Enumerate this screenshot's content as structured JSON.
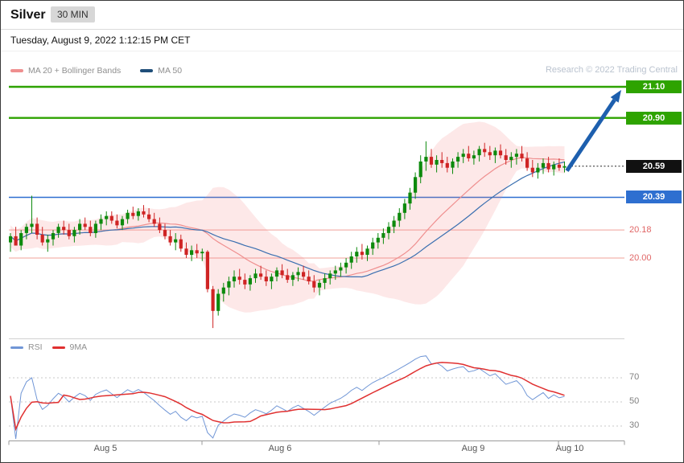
{
  "header": {
    "title": "Silver",
    "timeframe": "30 MIN",
    "datetime": "Tuesday, August 9, 2022 1:12:15 PM CET"
  },
  "legend": {
    "ma20_label": "MA 20 + Bollinger Bands",
    "ma50_label": "MA 50",
    "copyright": "Research © 2022 Trading Central"
  },
  "rsi_legend": {
    "rsi_label": "RSI",
    "ma_label": "9MA"
  },
  "chart_data": {
    "type": "candlestick",
    "title": "Silver 30 MIN intraday chart with MA20+Bollinger Bands, MA50, RSI(9MA) and pivot levels",
    "x_axis": {
      "labels": [
        {
          "text": "Aug 5",
          "x": 130
        },
        {
          "text": "Aug 6",
          "x": 347
        },
        {
          "text": "Aug 9",
          "x": 587
        },
        {
          "text": "Aug 10",
          "x": 707
        }
      ],
      "tick_positions": [
        10,
        250,
        470,
        693,
        775
      ]
    },
    "price_panel": {
      "ylim": [
        19.5,
        21.25
      ],
      "last_price": 20.59,
      "up_color": "#0d8a0d",
      "down_color": "#cf2424",
      "overlays": [
        {
          "name": "MA 20 + Bollinger Bands",
          "color": "#ef8f8f",
          "band_fill": "rgba(244,130,130,0.18)"
        },
        {
          "name": "MA 50",
          "color": "#3a6fb0"
        }
      ],
      "levels": [
        {
          "label": "21.10",
          "price": 21.1,
          "role": "resistance-target",
          "line_color": "#2ea300",
          "line_width": 2.4,
          "line": "solid",
          "line_span": "full",
          "box_bg": "#2ea300",
          "box_fg": "#ffffff"
        },
        {
          "label": "20.90",
          "price": 20.9,
          "role": "resistance",
          "line_color": "#2ea300",
          "line_width": 2.4,
          "line": "solid",
          "line_span": "full",
          "box_bg": "#2ea300",
          "box_fg": "#ffffff"
        },
        {
          "label": "20.59",
          "price": 20.59,
          "role": "last-price",
          "line_color": "#222222",
          "line_width": 1,
          "line": "dotted",
          "line_span": "right",
          "box_bg": "#111111",
          "box_fg": "#ffffff"
        },
        {
          "label": "20.39",
          "price": 20.39,
          "role": "support",
          "line_color": "#2e6fd0",
          "line_width": 1.6,
          "line": "solid",
          "line_span": "plot",
          "box_bg": "#2e6fd0",
          "box_fg": "#ffffff"
        },
        {
          "label": "20.18",
          "price": 20.18,
          "role": "pivot",
          "line_color": "#f4b3ae",
          "line_width": 1.3,
          "line": "solid",
          "line_span": "plot",
          "text_color": "#e06666"
        },
        {
          "label": "20.00",
          "price": 20.0,
          "role": "pivot",
          "line_color": "#f4b3ae",
          "line_width": 1.3,
          "line": "solid",
          "line_span": "plot",
          "text_color": "#e06666"
        }
      ],
      "arrow": {
        "type": "bullish-projection",
        "from_price": 20.56,
        "to_price": 21.08,
        "color": "#1d5fae",
        "width": 5
      },
      "candles_ohlc": [
        [
          20.1,
          20.16,
          20.04,
          20.14
        ],
        [
          20.14,
          20.2,
          20.1,
          20.08
        ],
        [
          20.08,
          20.18,
          20.05,
          20.16
        ],
        [
          20.16,
          20.22,
          20.12,
          20.2
        ],
        [
          20.2,
          20.4,
          20.16,
          20.22
        ],
        [
          20.22,
          20.26,
          20.12,
          20.15
        ],
        [
          20.15,
          20.2,
          20.08,
          20.1
        ],
        [
          20.1,
          20.15,
          20.04,
          20.12
        ],
        [
          20.12,
          20.18,
          20.08,
          20.16
        ],
        [
          20.16,
          20.22,
          20.13,
          20.2
        ],
        [
          20.2,
          20.24,
          20.15,
          20.18
        ],
        [
          20.18,
          20.22,
          20.12,
          20.14
        ],
        [
          20.14,
          20.2,
          20.1,
          20.18
        ],
        [
          20.18,
          20.25,
          20.15,
          20.22
        ],
        [
          20.22,
          20.26,
          20.18,
          20.2
        ],
        [
          20.2,
          20.24,
          20.14,
          20.16
        ],
        [
          20.16,
          20.24,
          20.13,
          20.22
        ],
        [
          20.22,
          20.28,
          20.18,
          20.25
        ],
        [
          20.25,
          20.3,
          20.21,
          20.27
        ],
        [
          20.27,
          20.3,
          20.22,
          20.24
        ],
        [
          20.24,
          20.28,
          20.19,
          20.21
        ],
        [
          20.21,
          20.27,
          20.18,
          20.25
        ],
        [
          20.25,
          20.31,
          20.22,
          20.29
        ],
        [
          20.29,
          20.33,
          20.25,
          20.27
        ],
        [
          20.27,
          20.32,
          20.24,
          20.3
        ],
        [
          20.3,
          20.34,
          20.26,
          20.28
        ],
        [
          20.28,
          20.32,
          20.23,
          20.25
        ],
        [
          20.25,
          20.29,
          20.2,
          20.22
        ],
        [
          20.22,
          20.26,
          20.16,
          20.18
        ],
        [
          20.18,
          20.22,
          20.12,
          20.14
        ],
        [
          20.14,
          20.18,
          20.08,
          20.1
        ],
        [
          20.1,
          20.16,
          20.05,
          20.12
        ],
        [
          20.12,
          20.15,
          20.04,
          20.06
        ],
        [
          20.06,
          20.1,
          20.0,
          20.02
        ],
        [
          20.02,
          20.08,
          19.98,
          20.05
        ],
        [
          20.05,
          20.09,
          20.0,
          20.03
        ],
        [
          20.03,
          20.06,
          19.98,
          20.04
        ],
        [
          20.04,
          20.05,
          19.78,
          19.8
        ],
        [
          19.8,
          19.82,
          19.55,
          19.66
        ],
        [
          19.66,
          19.8,
          19.63,
          19.77
        ],
        [
          19.77,
          19.84,
          19.72,
          19.81
        ],
        [
          19.81,
          19.88,
          19.76,
          19.85
        ],
        [
          19.85,
          19.92,
          19.81,
          19.88
        ],
        [
          19.88,
          19.93,
          19.83,
          19.86
        ],
        [
          19.86,
          19.9,
          19.8,
          19.83
        ],
        [
          19.83,
          19.89,
          19.79,
          19.87
        ],
        [
          19.87,
          19.93,
          19.84,
          19.9
        ],
        [
          19.9,
          19.95,
          19.86,
          19.88
        ],
        [
          19.88,
          19.92,
          19.82,
          19.85
        ],
        [
          19.85,
          19.9,
          19.8,
          19.88
        ],
        [
          19.88,
          19.94,
          19.85,
          19.92
        ],
        [
          19.92,
          19.96,
          19.87,
          19.89
        ],
        [
          19.89,
          19.93,
          19.84,
          19.86
        ],
        [
          19.86,
          19.91,
          19.82,
          19.89
        ],
        [
          19.89,
          19.94,
          19.85,
          19.91
        ],
        [
          19.91,
          19.95,
          19.86,
          19.88
        ],
        [
          19.88,
          19.92,
          19.83,
          19.85
        ],
        [
          19.85,
          19.89,
          19.78,
          19.81
        ],
        [
          19.81,
          19.86,
          19.76,
          19.84
        ],
        [
          19.84,
          19.9,
          19.8,
          19.87
        ],
        [
          19.87,
          19.92,
          19.83,
          19.9
        ],
        [
          19.9,
          19.95,
          19.86,
          19.92
        ],
        [
          19.92,
          19.97,
          19.88,
          19.94
        ],
        [
          19.94,
          20.0,
          19.9,
          19.97
        ],
        [
          19.97,
          20.04,
          19.93,
          20.01
        ],
        [
          20.01,
          20.07,
          19.97,
          20.04
        ],
        [
          20.04,
          20.09,
          19.99,
          20.02
        ],
        [
          20.02,
          20.08,
          19.98,
          20.06
        ],
        [
          20.06,
          20.13,
          20.02,
          20.1
        ],
        [
          20.1,
          20.16,
          20.06,
          20.13
        ],
        [
          20.13,
          20.19,
          20.09,
          20.16
        ],
        [
          20.16,
          20.23,
          20.12,
          20.2
        ],
        [
          20.2,
          20.27,
          20.16,
          20.24
        ],
        [
          20.24,
          20.32,
          20.2,
          20.29
        ],
        [
          20.29,
          20.38,
          20.25,
          20.35
        ],
        [
          20.35,
          20.45,
          20.31,
          20.42
        ],
        [
          20.42,
          20.55,
          20.38,
          20.52
        ],
        [
          20.52,
          20.66,
          20.48,
          20.62
        ],
        [
          20.62,
          20.75,
          20.56,
          20.65
        ],
        [
          20.65,
          20.7,
          20.58,
          20.6
        ],
        [
          20.6,
          20.66,
          20.55,
          20.63
        ],
        [
          20.63,
          20.68,
          20.58,
          20.61
        ],
        [
          20.61,
          20.65,
          20.55,
          20.58
        ],
        [
          20.58,
          20.64,
          20.54,
          20.62
        ],
        [
          20.62,
          20.68,
          20.58,
          20.65
        ],
        [
          20.65,
          20.7,
          20.61,
          20.67
        ],
        [
          20.67,
          20.72,
          20.62,
          20.64
        ],
        [
          20.64,
          20.69,
          20.6,
          20.66
        ],
        [
          20.66,
          20.72,
          20.62,
          20.7
        ],
        [
          20.7,
          20.74,
          20.65,
          20.68
        ],
        [
          20.68,
          20.72,
          20.63,
          20.66
        ],
        [
          20.66,
          20.71,
          20.61,
          20.69
        ],
        [
          20.69,
          20.73,
          20.64,
          20.66
        ],
        [
          20.66,
          20.7,
          20.6,
          20.63
        ],
        [
          20.63,
          20.68,
          20.58,
          20.65
        ],
        [
          20.65,
          20.7,
          20.6,
          20.67
        ],
        [
          20.67,
          20.72,
          20.62,
          20.64
        ],
        [
          20.64,
          20.68,
          20.56,
          20.58
        ],
        [
          20.58,
          20.63,
          20.52,
          20.55
        ],
        [
          20.55,
          20.61,
          20.51,
          20.58
        ],
        [
          20.58,
          20.64,
          20.54,
          20.61
        ],
        [
          20.61,
          20.65,
          20.55,
          20.57
        ],
        [
          20.57,
          20.62,
          20.53,
          20.6
        ],
        [
          20.6,
          20.64,
          20.56,
          20.58
        ],
        [
          20.58,
          20.62,
          20.55,
          20.59
        ]
      ]
    },
    "rsi_panel": {
      "indicator": "RSI",
      "ma": "9MA",
      "ticks": [
        70,
        50,
        30
      ],
      "colors": {
        "rsi": "#7096d6",
        "ma": "#e03030"
      }
    }
  }
}
